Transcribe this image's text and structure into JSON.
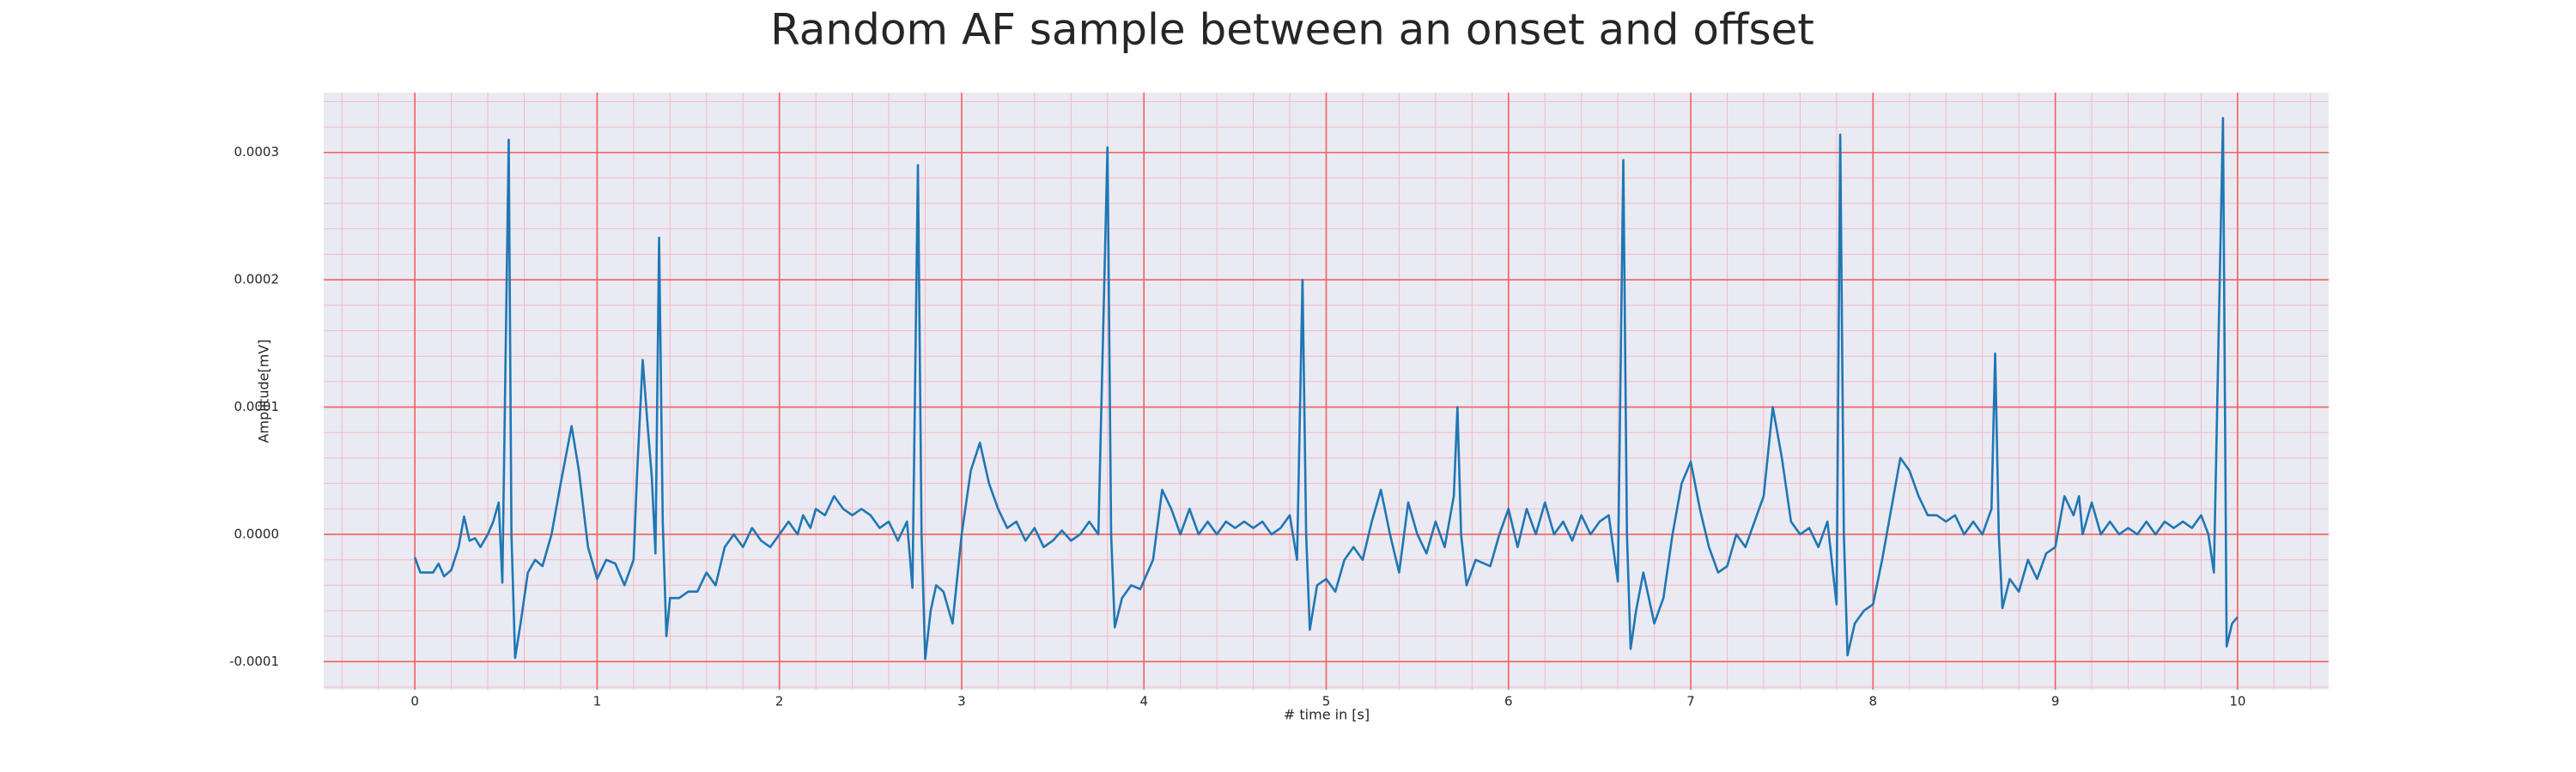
{
  "chart_data": {
    "type": "line",
    "title": "Random AF sample between an onset and offset",
    "xlabel": "# time in [s]",
    "ylabel": "Amplitude[mV]",
    "xlim": [
      -0.5,
      10.5
    ],
    "ylim": [
      -0.000122,
      0.000347
    ],
    "xticks": [
      0,
      1,
      2,
      3,
      4,
      5,
      6,
      7,
      8,
      9,
      10
    ],
    "yticks": [
      {
        "value": -0.0001,
        "label": "-0.0001"
      },
      {
        "value": 0,
        "label": "0.0000"
      },
      {
        "value": 0.0001,
        "label": "0.0001"
      },
      {
        "value": 0.0002,
        "label": "0.0002"
      },
      {
        "value": 0.0003,
        "label": "0.0003"
      }
    ],
    "grid": true,
    "minor_grid": true,
    "background": "#eaeaf2",
    "grid_color": "#f06060",
    "minor_grid_color": "#f5b8c4",
    "series": [
      {
        "color": "#1f77b4",
        "x": [
          0,
          0.03,
          0.1,
          0.13,
          0.16,
          0.2,
          0.24,
          0.27,
          0.3,
          0.33,
          0.36,
          0.4,
          0.43,
          0.46,
          0.48,
          0.515,
          0.53,
          0.55,
          0.58,
          0.62,
          0.66,
          0.7,
          0.75,
          0.8,
          0.86,
          0.9,
          0.95,
          1.0,
          1.05,
          1.1,
          1.15,
          1.2,
          1.22,
          1.25,
          1.28,
          1.3,
          1.32,
          1.34,
          1.36,
          1.38,
          1.4,
          1.45,
          1.5,
          1.55,
          1.6,
          1.65,
          1.7,
          1.75,
          1.8,
          1.85,
          1.9,
          1.95,
          2.0,
          2.05,
          2.1,
          2.13,
          2.17,
          2.2,
          2.25,
          2.3,
          2.35,
          2.4,
          2.45,
          2.5,
          2.55,
          2.6,
          2.65,
          2.7,
          2.73,
          2.76,
          2.78,
          2.8,
          2.83,
          2.86,
          2.9,
          2.95,
          3.0,
          3.05,
          3.1,
          3.15,
          3.2,
          3.25,
          3.3,
          3.35,
          3.4,
          3.45,
          3.5,
          3.55,
          3.6,
          3.65,
          3.7,
          3.75,
          3.8,
          3.82,
          3.84,
          3.88,
          3.93,
          3.98,
          4.05,
          4.1,
          4.15,
          4.2,
          4.25,
          4.3,
          4.35,
          4.4,
          4.45,
          4.5,
          4.55,
          4.6,
          4.65,
          4.7,
          4.75,
          4.8,
          4.84,
          4.87,
          4.89,
          4.91,
          4.95,
          5.0,
          5.05,
          5.1,
          5.15,
          5.2,
          5.25,
          5.3,
          5.35,
          5.4,
          5.45,
          5.5,
          5.55,
          5.6,
          5.65,
          5.7,
          5.72,
          5.74,
          5.77,
          5.82,
          5.9,
          5.95,
          6.0,
          6.05,
          6.1,
          6.15,
          6.2,
          6.25,
          6.3,
          6.35,
          6.4,
          6.45,
          6.5,
          6.55,
          6.6,
          6.63,
          6.65,
          6.67,
          6.7,
          6.74,
          6.8,
          6.85,
          6.9,
          6.95,
          7.0,
          7.05,
          7.1,
          7.15,
          7.2,
          7.25,
          7.3,
          7.35,
          7.4,
          7.45,
          7.5,
          7.55,
          7.6,
          7.65,
          7.7,
          7.75,
          7.8,
          7.82,
          7.84,
          7.86,
          7.9,
          7.95,
          8.0,
          8.05,
          8.1,
          8.15,
          8.2,
          8.25,
          8.3,
          8.35,
          8.4,
          8.45,
          8.5,
          8.55,
          8.6,
          8.65,
          8.67,
          8.69,
          8.71,
          8.75,
          8.8,
          8.85,
          8.9,
          8.95,
          9.0,
          9.05,
          9.1,
          9.13,
          9.15,
          9.2,
          9.25,
          9.3,
          9.35,
          9.4,
          9.45,
          9.5,
          9.55,
          9.6,
          9.65,
          9.7,
          9.75,
          9.8,
          9.84,
          9.87,
          9.92,
          9.94,
          9.97,
          10.0
        ],
        "values": [
          -1.8e-05,
          -3e-05,
          -3e-05,
          -2.3e-05,
          -3.3e-05,
          -2.8e-05,
          -1e-05,
          1.4e-05,
          -5e-06,
          -3e-06,
          -1e-05,
          0,
          1e-05,
          2.5e-05,
          -3.8e-05,
          0.00031,
          0,
          -9.7e-05,
          -7e-05,
          -3e-05,
          -2e-05,
          -2.5e-05,
          0,
          4e-05,
          8.5e-05,
          5e-05,
          -1e-05,
          -3.5e-05,
          -2e-05,
          -2.3e-05,
          -4e-05,
          -2e-05,
          5e-05,
          0.000137,
          8e-05,
          4.5e-05,
          -1.5e-05,
          0.000233,
          1e-05,
          -8e-05,
          -5e-05,
          -5e-05,
          -4.5e-05,
          -4.5e-05,
          -3e-05,
          -4e-05,
          -1e-05,
          0,
          -1e-05,
          5e-06,
          -5e-06,
          -1e-05,
          0,
          1e-05,
          0,
          1.5e-05,
          5e-06,
          2e-05,
          1.5e-05,
          3e-05,
          2e-05,
          1.5e-05,
          2e-05,
          1.5e-05,
          5e-06,
          1e-05,
          -5e-06,
          1e-05,
          -4.2e-05,
          0.00029,
          0,
          -9.8e-05,
          -6e-05,
          -4e-05,
          -4.5e-05,
          -7e-05,
          0,
          5e-05,
          7.2e-05,
          4e-05,
          2e-05,
          5e-06,
          1e-05,
          -5e-06,
          5e-06,
          -1e-05,
          -5e-06,
          3e-06,
          -5e-06,
          0,
          1e-05,
          0,
          0.000304,
          0,
          -7.3e-05,
          -5e-05,
          -4e-05,
          -4.3e-05,
          -2e-05,
          3.5e-05,
          2e-05,
          0,
          2e-05,
          0,
          1e-05,
          0,
          1e-05,
          5e-06,
          1e-05,
          5e-06,
          1e-05,
          0,
          5e-06,
          1.5e-05,
          -2e-05,
          0.0002,
          0,
          -7.5e-05,
          -4e-05,
          -3.5e-05,
          -4.5e-05,
          -2e-05,
          -1e-05,
          -2e-05,
          1e-05,
          3.5e-05,
          0,
          -3e-05,
          2.5e-05,
          0,
          -1.5e-05,
          1e-05,
          -1e-05,
          3e-05,
          0.0001,
          0,
          -4e-05,
          -2e-05,
          -2.5e-05,
          0,
          2e-05,
          -1e-05,
          2e-05,
          0,
          2.5e-05,
          0,
          1e-05,
          -5e-06,
          1.5e-05,
          0,
          1e-05,
          1.5e-05,
          -3.7e-05,
          0.000294,
          0,
          -9e-05,
          -6e-05,
          -3e-05,
          -7e-05,
          -5e-05,
          0,
          4e-05,
          5.7e-05,
          2e-05,
          -1e-05,
          -3e-05,
          -2.5e-05,
          0,
          -1e-05,
          1e-05,
          3e-05,
          0.0001,
          6e-05,
          1e-05,
          0,
          5e-06,
          -1e-05,
          1e-05,
          -5.5e-05,
          0.000314,
          0,
          -9.5e-05,
          -7e-05,
          -6e-05,
          -5.5e-05,
          -2e-05,
          2e-05,
          6e-05,
          5e-05,
          3e-05,
          1.5e-05,
          1.5e-05,
          1e-05,
          1.5e-05,
          0,
          1e-05,
          0,
          2e-05,
          0.000142,
          0,
          -5.8e-05,
          -3.5e-05,
          -4.5e-05,
          -2e-05,
          -3.5e-05,
          -1.5e-05,
          -1e-05,
          3e-05,
          1.5e-05,
          3e-05,
          0,
          2.5e-05,
          0,
          1e-05,
          0,
          5e-06,
          0,
          1e-05,
          0,
          1e-05,
          5e-06,
          1e-05,
          5e-06,
          1.5e-05,
          0,
          -3e-05,
          0.000327,
          -8.8e-05,
          -7e-05,
          -6.5e-05
        ]
      }
    ]
  }
}
